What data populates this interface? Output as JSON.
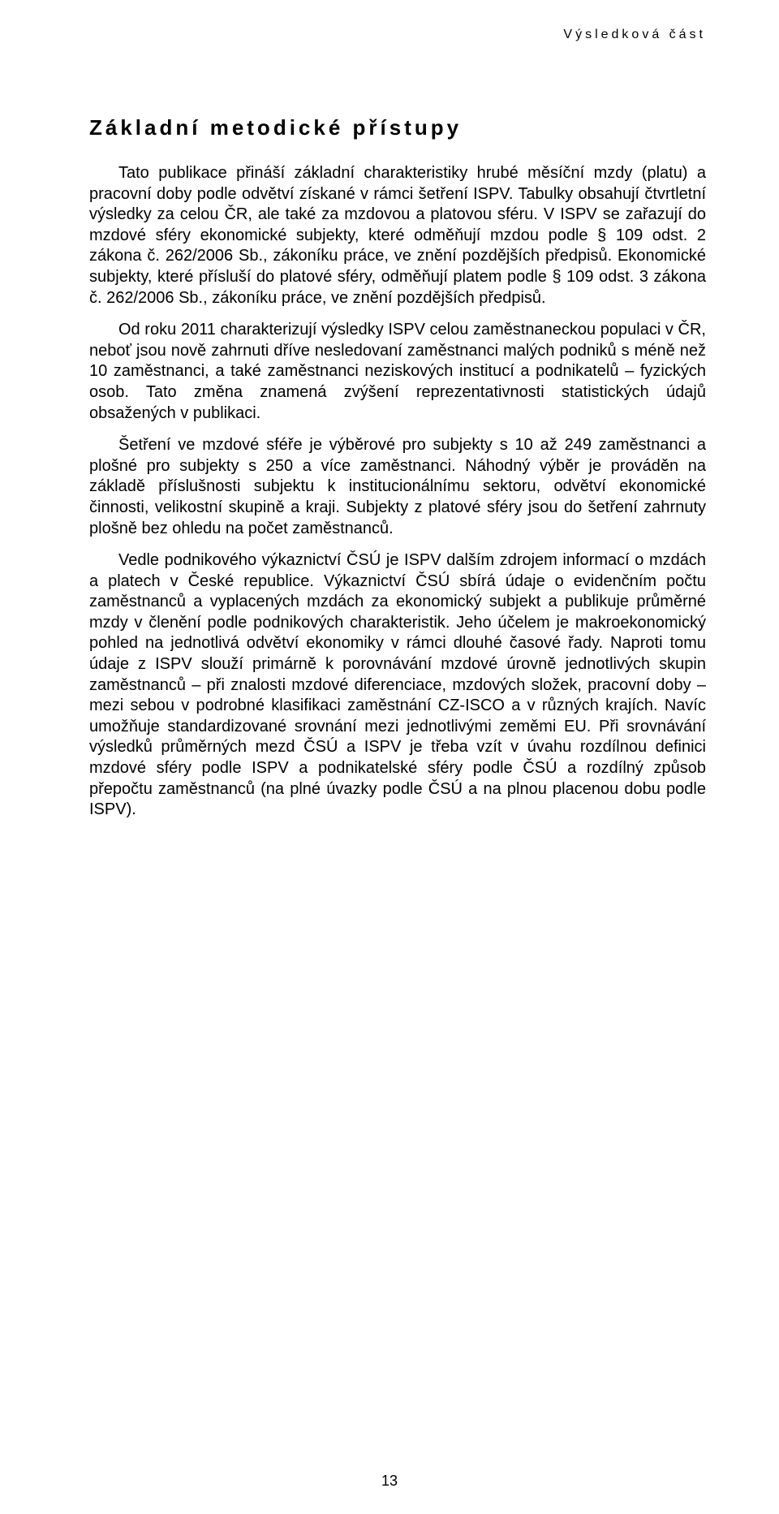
{
  "page": {
    "running_head": "Výsledková část",
    "section_title": "Základní metodické přístupy",
    "paragraphs": [
      "Tato publikace přináší základní charakteristiky hrubé měsíční mzdy (platu) a pracovní doby podle odvětví získané v rámci šetření ISPV. Tabulky obsahují čtvrtletní výsledky za celou ČR, ale také za mzdovou a platovou sféru. V ISPV se zařazují do mzdové sféry ekonomické subjekty, které odměňují mzdou podle § 109 odst. 2 zákona č. 262/2006 Sb., zákoníku práce, ve znění pozdějších předpisů. Ekonomické subjekty, které přísluší do platové sféry, odměňují platem podle § 109 odst. 3 zákona č. 262/2006 Sb., zákoníku práce, ve znění pozdějších předpisů.",
      "Od roku 2011 charakterizují výsledky ISPV celou zaměstnaneckou populaci v ČR, neboť jsou nově zahrnuti dříve nesledovaní zaměstnanci malých podniků s méně než 10 zaměstnanci, a také zaměstnanci neziskových institucí a podnikatelů – fyzických osob. Tato změna znamená zvýšení reprezentativnosti statistických údajů obsažených v publikaci.",
      "Šetření ve mzdové sféře je výběrové pro subjekty s 10 až 249 zaměstnanci a plošné pro subjekty s 250 a více zaměstnanci. Náhodný výběr je prováděn na základě příslušnosti subjektu k institucionálnímu sektoru, odvětví ekonomické činnosti, velikostní skupině a kraji. Subjekty z platové sféry jsou do šetření zahrnuty plošně bez ohledu na počet zaměstnanců.",
      "Vedle podnikového výkaznictví ČSÚ je ISPV dalším zdrojem informací o mzdách a platech v České republice. Výkaznictví ČSÚ sbírá údaje o evidenčním počtu zaměstnanců a vyplacených mzdách za ekonomický subjekt a publikuje průměrné mzdy v členění podle podnikových charakteristik. Jeho účelem je makroekonomický pohled na jednotlivá odvětví ekonomiky v rámci dlouhé časové řady. Naproti tomu údaje z ISPV slouží primárně k porovnávání mzdové úrovně jednotlivých skupin zaměstnanců – při znalosti mzdové diferenciace, mzdových složek, pracovní doby – mezi sebou v podrobné klasifikaci zaměstnání CZ-ISCO a v různých krajích. Navíc umožňuje standardizované srovnání mezi jednotlivými zeměmi EU. Při srovnávání výsledků průměrných mezd ČSÚ a ISPV je třeba vzít v úvahu rozdílnou definici mzdové sféry podle ISPV a podnikatelské sféry podle ČSÚ a rozdílný způsob přepočtu zaměstnanců (na plné úvazky podle ČSÚ a na plnou placenou dobu podle ISPV)."
    ],
    "page_number": "13"
  }
}
